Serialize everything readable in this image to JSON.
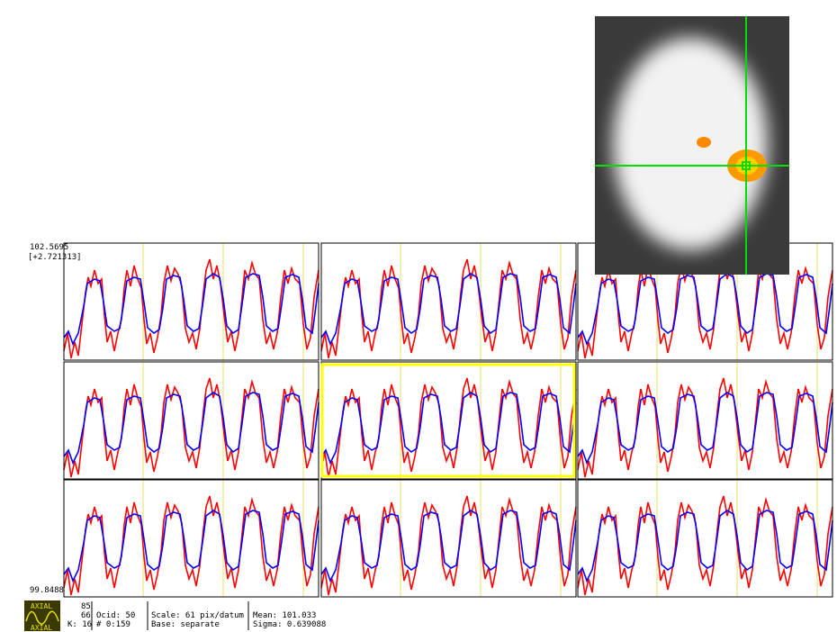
{
  "graph": {
    "top_value": "102.5695",
    "top_offset": "[+2.721313]",
    "bottom_value": "99.8488"
  },
  "status": {
    "i": "85",
    "j": "66",
    "k": "K: 16",
    "ocid": "Ocid:   50",
    "index": "#   0:159",
    "scale": "Scale: 61 pix/datum",
    "base": "Base: separate",
    "mean": "Mean:    101.033",
    "sigma": "Sigma:  0.639088"
  },
  "icon": {
    "top": "AXIAL",
    "bottom": "AXIAL"
  }
}
